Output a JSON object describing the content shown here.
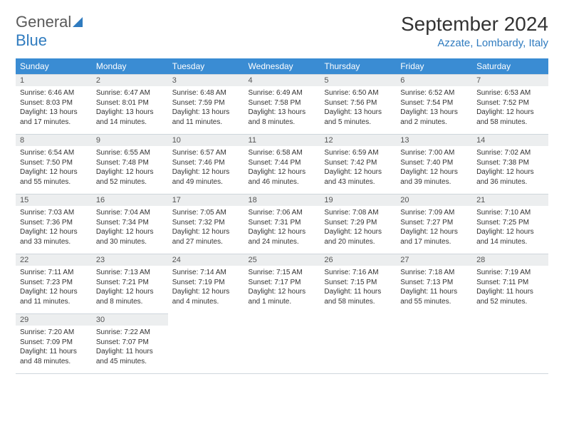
{
  "brand": {
    "name_first": "General",
    "name_second": "Blue"
  },
  "title": "September 2024",
  "location": "Azzate, Lombardy, Italy",
  "colors": {
    "header_bg": "#3a8cd3",
    "header_text": "#ffffff",
    "daynum_bg": "#eceeef",
    "border": "#cfd6dc",
    "accent": "#2f7bbf",
    "body_text": "#333333"
  },
  "weekdays": [
    "Sunday",
    "Monday",
    "Tuesday",
    "Wednesday",
    "Thursday",
    "Friday",
    "Saturday"
  ],
  "weeks": [
    [
      {
        "day": "1",
        "sunrise": "Sunrise: 6:46 AM",
        "sunset": "Sunset: 8:03 PM",
        "daylight": "Daylight: 13 hours and 17 minutes."
      },
      {
        "day": "2",
        "sunrise": "Sunrise: 6:47 AM",
        "sunset": "Sunset: 8:01 PM",
        "daylight": "Daylight: 13 hours and 14 minutes."
      },
      {
        "day": "3",
        "sunrise": "Sunrise: 6:48 AM",
        "sunset": "Sunset: 7:59 PM",
        "daylight": "Daylight: 13 hours and 11 minutes."
      },
      {
        "day": "4",
        "sunrise": "Sunrise: 6:49 AM",
        "sunset": "Sunset: 7:58 PM",
        "daylight": "Daylight: 13 hours and 8 minutes."
      },
      {
        "day": "5",
        "sunrise": "Sunrise: 6:50 AM",
        "sunset": "Sunset: 7:56 PM",
        "daylight": "Daylight: 13 hours and 5 minutes."
      },
      {
        "day": "6",
        "sunrise": "Sunrise: 6:52 AM",
        "sunset": "Sunset: 7:54 PM",
        "daylight": "Daylight: 13 hours and 2 minutes."
      },
      {
        "day": "7",
        "sunrise": "Sunrise: 6:53 AM",
        "sunset": "Sunset: 7:52 PM",
        "daylight": "Daylight: 12 hours and 58 minutes."
      }
    ],
    [
      {
        "day": "8",
        "sunrise": "Sunrise: 6:54 AM",
        "sunset": "Sunset: 7:50 PM",
        "daylight": "Daylight: 12 hours and 55 minutes."
      },
      {
        "day": "9",
        "sunrise": "Sunrise: 6:55 AM",
        "sunset": "Sunset: 7:48 PM",
        "daylight": "Daylight: 12 hours and 52 minutes."
      },
      {
        "day": "10",
        "sunrise": "Sunrise: 6:57 AM",
        "sunset": "Sunset: 7:46 PM",
        "daylight": "Daylight: 12 hours and 49 minutes."
      },
      {
        "day": "11",
        "sunrise": "Sunrise: 6:58 AM",
        "sunset": "Sunset: 7:44 PM",
        "daylight": "Daylight: 12 hours and 46 minutes."
      },
      {
        "day": "12",
        "sunrise": "Sunrise: 6:59 AM",
        "sunset": "Sunset: 7:42 PM",
        "daylight": "Daylight: 12 hours and 43 minutes."
      },
      {
        "day": "13",
        "sunrise": "Sunrise: 7:00 AM",
        "sunset": "Sunset: 7:40 PM",
        "daylight": "Daylight: 12 hours and 39 minutes."
      },
      {
        "day": "14",
        "sunrise": "Sunrise: 7:02 AM",
        "sunset": "Sunset: 7:38 PM",
        "daylight": "Daylight: 12 hours and 36 minutes."
      }
    ],
    [
      {
        "day": "15",
        "sunrise": "Sunrise: 7:03 AM",
        "sunset": "Sunset: 7:36 PM",
        "daylight": "Daylight: 12 hours and 33 minutes."
      },
      {
        "day": "16",
        "sunrise": "Sunrise: 7:04 AM",
        "sunset": "Sunset: 7:34 PM",
        "daylight": "Daylight: 12 hours and 30 minutes."
      },
      {
        "day": "17",
        "sunrise": "Sunrise: 7:05 AM",
        "sunset": "Sunset: 7:32 PM",
        "daylight": "Daylight: 12 hours and 27 minutes."
      },
      {
        "day": "18",
        "sunrise": "Sunrise: 7:06 AM",
        "sunset": "Sunset: 7:31 PM",
        "daylight": "Daylight: 12 hours and 24 minutes."
      },
      {
        "day": "19",
        "sunrise": "Sunrise: 7:08 AM",
        "sunset": "Sunset: 7:29 PM",
        "daylight": "Daylight: 12 hours and 20 minutes."
      },
      {
        "day": "20",
        "sunrise": "Sunrise: 7:09 AM",
        "sunset": "Sunset: 7:27 PM",
        "daylight": "Daylight: 12 hours and 17 minutes."
      },
      {
        "day": "21",
        "sunrise": "Sunrise: 7:10 AM",
        "sunset": "Sunset: 7:25 PM",
        "daylight": "Daylight: 12 hours and 14 minutes."
      }
    ],
    [
      {
        "day": "22",
        "sunrise": "Sunrise: 7:11 AM",
        "sunset": "Sunset: 7:23 PM",
        "daylight": "Daylight: 12 hours and 11 minutes."
      },
      {
        "day": "23",
        "sunrise": "Sunrise: 7:13 AM",
        "sunset": "Sunset: 7:21 PM",
        "daylight": "Daylight: 12 hours and 8 minutes."
      },
      {
        "day": "24",
        "sunrise": "Sunrise: 7:14 AM",
        "sunset": "Sunset: 7:19 PM",
        "daylight": "Daylight: 12 hours and 4 minutes."
      },
      {
        "day": "25",
        "sunrise": "Sunrise: 7:15 AM",
        "sunset": "Sunset: 7:17 PM",
        "daylight": "Daylight: 12 hours and 1 minute."
      },
      {
        "day": "26",
        "sunrise": "Sunrise: 7:16 AM",
        "sunset": "Sunset: 7:15 PM",
        "daylight": "Daylight: 11 hours and 58 minutes."
      },
      {
        "day": "27",
        "sunrise": "Sunrise: 7:18 AM",
        "sunset": "Sunset: 7:13 PM",
        "daylight": "Daylight: 11 hours and 55 minutes."
      },
      {
        "day": "28",
        "sunrise": "Sunrise: 7:19 AM",
        "sunset": "Sunset: 7:11 PM",
        "daylight": "Daylight: 11 hours and 52 minutes."
      }
    ],
    [
      {
        "day": "29",
        "sunrise": "Sunrise: 7:20 AM",
        "sunset": "Sunset: 7:09 PM",
        "daylight": "Daylight: 11 hours and 48 minutes."
      },
      {
        "day": "30",
        "sunrise": "Sunrise: 7:22 AM",
        "sunset": "Sunset: 7:07 PM",
        "daylight": "Daylight: 11 hours and 45 minutes."
      },
      null,
      null,
      null,
      null,
      null
    ]
  ]
}
